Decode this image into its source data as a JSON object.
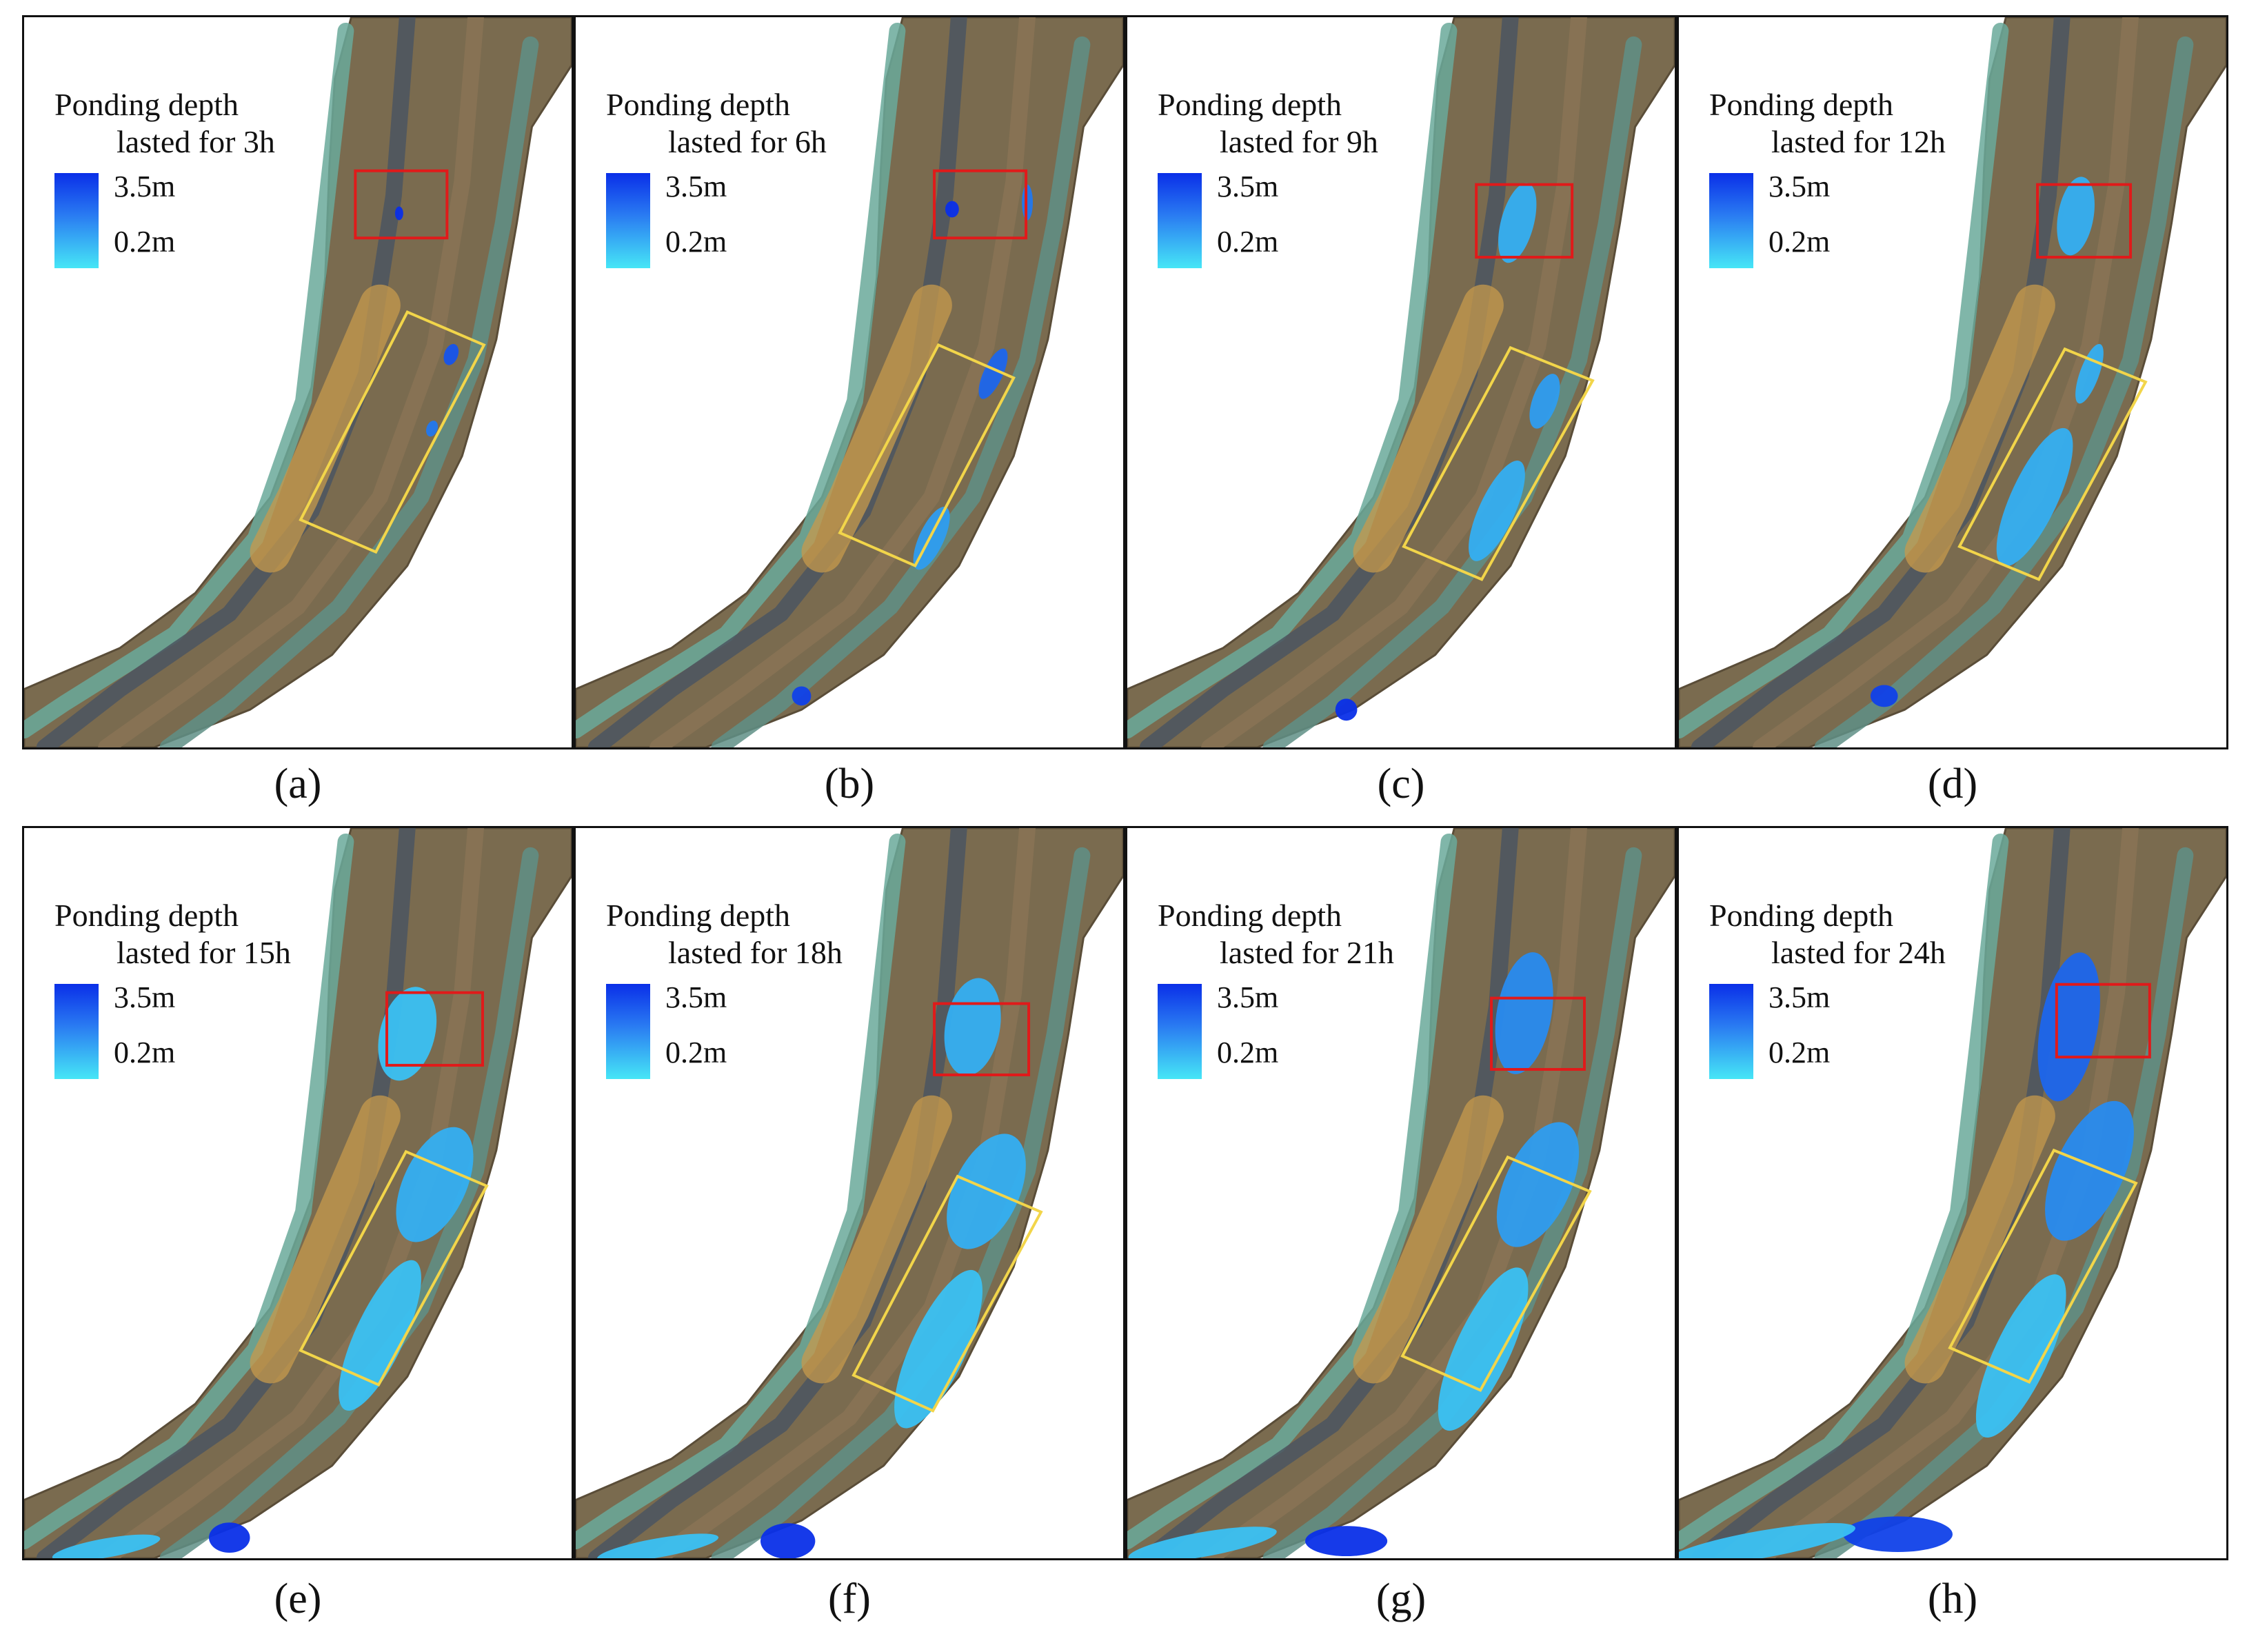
{
  "legend": {
    "title": "Ponding depth",
    "max_label": "3.5m",
    "min_label": "0.2m",
    "colors": {
      "deep": "#0a2fe8",
      "shallow": "#46e6f6"
    }
  },
  "highlight_colors": {
    "upper_zone": "#e01a1a",
    "lower_zone": "#f2d54a"
  },
  "panels": [
    {
      "label": "(a)",
      "duration": "lasted for 3h"
    },
    {
      "label": "(b)",
      "duration": "lasted for 6h"
    },
    {
      "label": "(c)",
      "duration": "lasted for 9h"
    },
    {
      "label": "(d)",
      "duration": "lasted for 12h"
    },
    {
      "label": "(e)",
      "duration": "lasted for 15h"
    },
    {
      "label": "(f)",
      "duration": "lasted for 18h"
    },
    {
      "label": "(g)",
      "duration": "lasted for 21h"
    },
    {
      "label": "(h)",
      "duration": "lasted for 24h"
    }
  ]
}
